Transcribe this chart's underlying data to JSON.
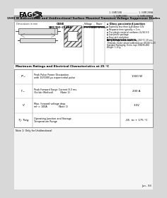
{
  "bg_color": "#d8d8d8",
  "page_bg": "#f5f5f5",
  "brand": "FAGOR",
  "part_line1": "1.5SMC5VB .......... 1.5SMC200A",
  "part_line2": "1.5SMC5VBC ..... 1.5SMC200CA",
  "title_bar_text": "1500 W Bidirectional and Unidirectional Surface Mounted Transient Voltage Suppressor Diodes",
  "title_bar_bg": "#aaaaaa",
  "dim_label": "Dimensions in mm",
  "case_label": "CASE\nSMC/DO-214AB",
  "voltage_header": "Voltage\n6.8 to 200 V",
  "power_header": "Power\n1500 W(max)",
  "features_title": "Glass passivated junction",
  "features": [
    "Typical Iρ less than 1μA above 10V",
    "Response time typically < 1 ns",
    "The plastic material conforms UL-94 V-0",
    "Low profile package",
    "Easy pick and place",
    "High temperature solder (eq 260°C) 20 sec."
  ],
  "info_title": "INFORMATION/DATOS",
  "info_lines": [
    "Terminals: Solder plated solderable per IEC383-2-23",
    "Standard Packaging: 8 mm. tape (EIA-RS-481)",
    "Weight: 1.12 g."
  ],
  "table_title": "Maximum Ratings and Electrical Characteristics at 25 °C",
  "rows": [
    {
      "symbol": "Pᵖₘ",
      "desc1": "Peak Pulse Power Dissipation",
      "desc2": "with 10/1000 μs exponential pulse",
      "value": "1500 W"
    },
    {
      "symbol": "Iᵖₘ",
      "desc1": "Peak Forward Surge Current 8.3 ms.",
      "desc2": "(Solder Method)         (Note 1)",
      "value": "200 A"
    },
    {
      "symbol": "Vⁱ",
      "desc1": "Max. forward voltage drop",
      "desc2": "mIⁱ = 100A              (Note 1)",
      "value": "3.5V"
    },
    {
      "symbol": "Tj, Tstg",
      "desc1": "Operating Junction and Storage",
      "desc2": "Temperature Range",
      "value": "-65  to + 175 °C"
    }
  ],
  "footnote": "Note 1: Only for Unidirectional",
  "footer": "Jun - 93"
}
